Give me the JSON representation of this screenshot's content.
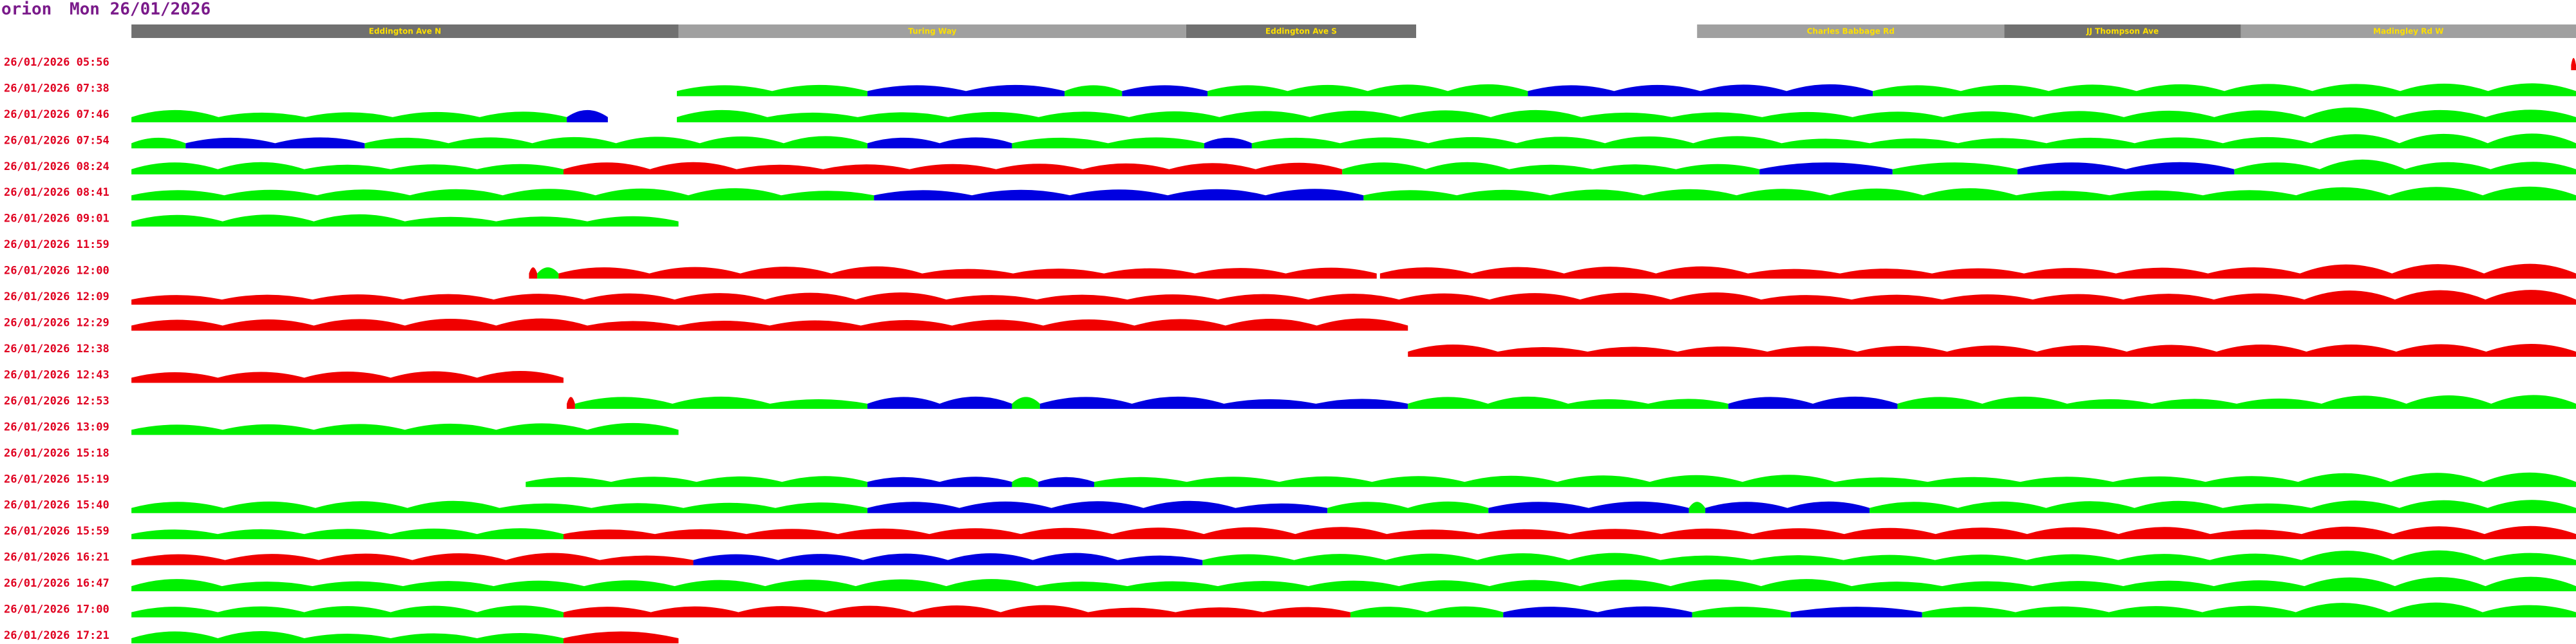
{
  "header": {
    "app": "orion",
    "date": "Mon 26/01/2026"
  },
  "roads": [
    "Eddington Ave N",
    "Turing Way",
    "Eddington Ave S",
    "Charles Babbage Rd",
    "JJ Thompson Ave",
    "Madingley Rd W"
  ],
  "rows": [
    "26/01/2026 05:56",
    "26/01/2026 07:38",
    "26/01/2026 07:46",
    "26/01/2026 07:54",
    "26/01/2026 08:24",
    "26/01/2026 08:41",
    "26/01/2026 09:01",
    "26/01/2026 11:59",
    "26/01/2026 12:00",
    "26/01/2026 12:09",
    "26/01/2026 12:29",
    "26/01/2026 12:38",
    "26/01/2026 12:43",
    "26/01/2026 12:53",
    "26/01/2026 13:09",
    "26/01/2026 15:18",
    "26/01/2026 15:19",
    "26/01/2026 15:40",
    "26/01/2026 15:59",
    "26/01/2026 16:21",
    "26/01/2026 16:47",
    "26/01/2026 17:00",
    "26/01/2026 17:21"
  ]
}
